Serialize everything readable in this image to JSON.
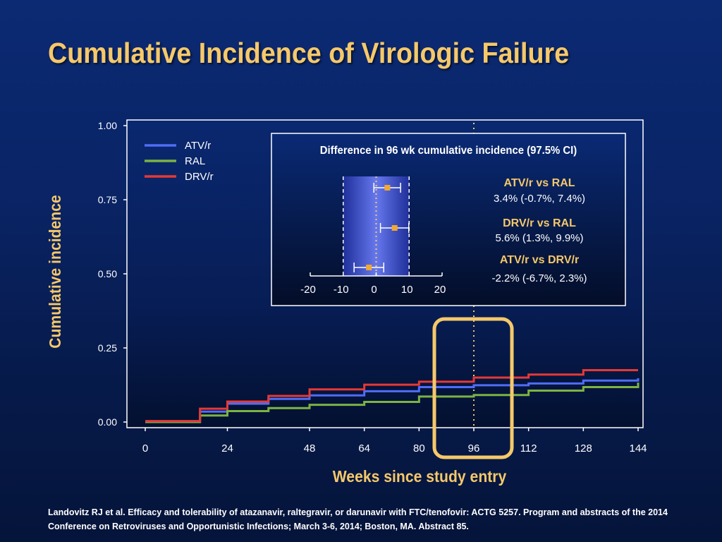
{
  "slide": {
    "title": "Cumulative Incidence of Virologic Failure",
    "citation": "Landovitz RJ et al. Efficacy and tolerability of atazanavir, raltegravir, or darunavir with FTC/tenofovir: ACTG 5257. Program and abstracts of the 2014 Conference on Retroviruses and Opportunistic Infections; March 3-6, 2014; Boston, MA. Abstract 85."
  },
  "colors": {
    "title": "#f5c86a",
    "atv": "#4f6df5",
    "ral": "#7cb342",
    "drv": "#e53935",
    "highlight": "#f5c86a",
    "marker": "#f0a830"
  },
  "chart_data": [
    {
      "type": "line",
      "step": true,
      "xlabel": "Weeks since study entry",
      "ylabel": "Cumulative incidence",
      "xticks": [
        0,
        24,
        48,
        64,
        80,
        96,
        112,
        128,
        144
      ],
      "yticks": [
        "0.00",
        "0.25",
        "0.50",
        "0.75",
        "1.00"
      ],
      "xlim": [
        0,
        144
      ],
      "ylim": [
        0,
        1.0
      ],
      "grid": false,
      "legend_position": "top-left",
      "reference_line_x": 96,
      "highlight_x": 96,
      "series": [
        {
          "name": "ATV/r",
          "color_key": "atv",
          "x": [
            0,
            16,
            24,
            36,
            48,
            64,
            80,
            96,
            112,
            128,
            144
          ],
          "y": [
            0.003,
            0.035,
            0.062,
            0.078,
            0.09,
            0.104,
            0.118,
            0.124,
            0.13,
            0.14,
            0.148
          ]
        },
        {
          "name": "RAL",
          "color_key": "ral",
          "x": [
            0,
            16,
            24,
            36,
            48,
            64,
            80,
            96,
            112,
            128,
            143,
            144
          ],
          "y": [
            0.0,
            0.022,
            0.037,
            0.047,
            0.058,
            0.068,
            0.086,
            0.091,
            0.106,
            0.118,
            0.118,
            0.133
          ]
        },
        {
          "name": "DRV/r",
          "color_key": "drv",
          "x": [
            0,
            16,
            24,
            36,
            48,
            64,
            80,
            96,
            112,
            128,
            144
          ],
          "y": [
            0.003,
            0.045,
            0.069,
            0.088,
            0.11,
            0.126,
            0.136,
            0.15,
            0.16,
            0.175,
            0.175
          ]
        }
      ]
    },
    {
      "type": "scatter",
      "title": "Difference in 96 wk cumulative incidence (97.5% CI)",
      "xticks": [
        "-20",
        "-10",
        "0",
        "10",
        "20"
      ],
      "xlim": [
        -20,
        20
      ],
      "band": [
        -10,
        10
      ],
      "comparisons": [
        {
          "label": "ATV/r vs RAL",
          "value_text": "3.4% (-0.7%, 7.4%)",
          "est": 3.4,
          "lo": -0.7,
          "hi": 7.4
        },
        {
          "label": "DRV/r vs RAL",
          "value_text": "5.6% (1.3%, 9.9%)",
          "est": 5.6,
          "lo": 1.3,
          "hi": 9.9
        },
        {
          "label": "ATV/r vs DRV/r",
          "value_text": "-2.2% (-6.7%, 2.3%)",
          "est": -2.2,
          "lo": -6.7,
          "hi": 2.3
        }
      ]
    }
  ]
}
